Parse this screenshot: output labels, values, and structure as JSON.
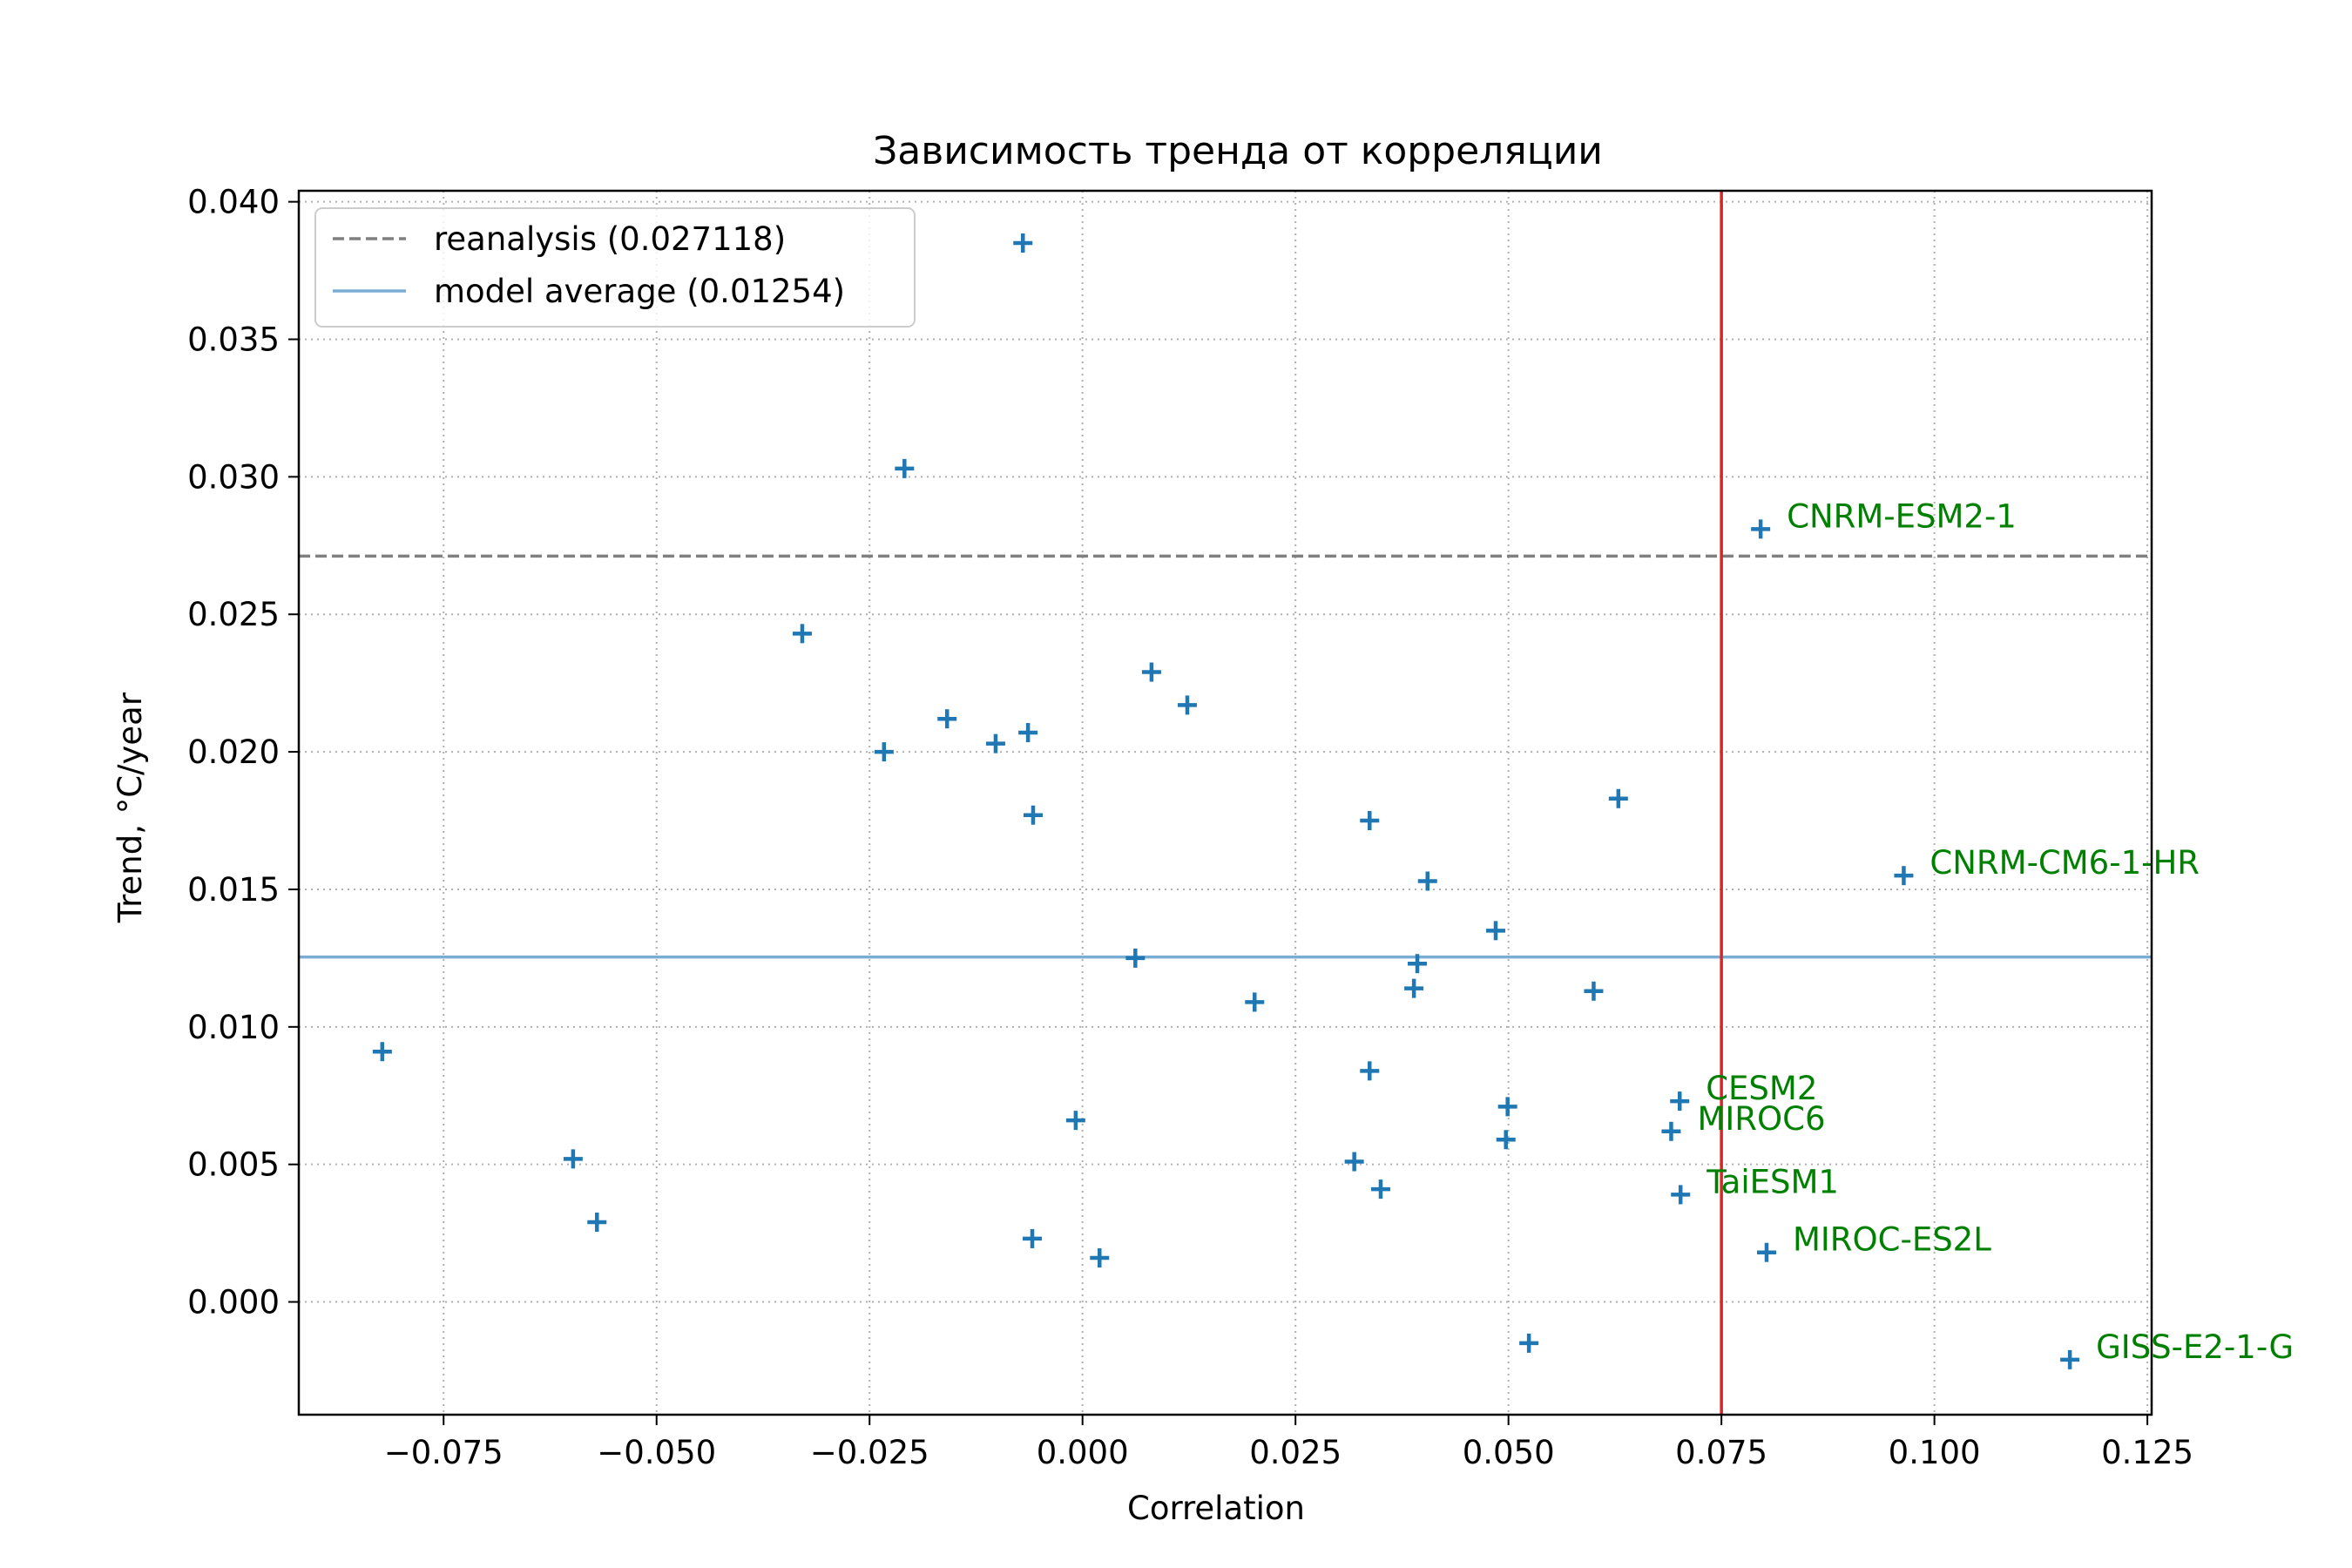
{
  "chart_data": {
    "type": "scatter",
    "title": "Зависимость тренда от корреляции",
    "xlabel": "Correlation",
    "ylabel": "Trend, °C/year",
    "xlim": [
      -0.092,
      0.1255
    ],
    "ylim": [
      -0.0041,
      0.0404
    ],
    "grid": true,
    "legend_placement": "upper left",
    "xticks": [
      -0.075,
      -0.05,
      -0.025,
      0.0,
      0.025,
      0.05,
      0.075,
      0.1,
      0.125
    ],
    "xtick_labels": [
      "−0.075",
      "−0.050",
      "−0.025",
      "0.000",
      "0.025",
      "0.050",
      "0.075",
      "0.100",
      "0.125"
    ],
    "yticks": [
      0.0,
      0.005,
      0.01,
      0.015,
      0.02,
      0.025,
      0.03,
      0.035,
      0.04
    ],
    "ytick_labels": [
      "0.000",
      "0.005",
      "0.010",
      "0.015",
      "0.020",
      "0.025",
      "0.030",
      "0.035",
      "0.040"
    ],
    "hlines": [
      {
        "label": "reanalysis (0.027118)",
        "y": 0.027118,
        "color": "#808080",
        "style": "dashed"
      },
      {
        "label": "model average (0.01254)",
        "y": 0.01254,
        "color": "#7aadd4",
        "style": "solid"
      }
    ],
    "vlines": [
      {
        "x": 0.075,
        "color": "#d62728"
      }
    ],
    "colors": {
      "points": "#1f77b4",
      "annotations": "#008000",
      "threshold": "#d62728"
    },
    "series": [
      {
        "marker": "plus",
        "points": [
          {
            "x": -0.0822,
            "y": 0.0091
          },
          {
            "x": -0.0598,
            "y": 0.0052
          },
          {
            "x": -0.057,
            "y": 0.0029
          },
          {
            "x": -0.0329,
            "y": 0.0243
          },
          {
            "x": -0.0233,
            "y": 0.02
          },
          {
            "x": -0.0209,
            "y": 0.0303
          },
          {
            "x": -0.0159,
            "y": 0.0212
          },
          {
            "x": -0.0102,
            "y": 0.0203
          },
          {
            "x": -0.007,
            "y": 0.0385
          },
          {
            "x": -0.0064,
            "y": 0.0207
          },
          {
            "x": -0.0058,
            "y": 0.0177
          },
          {
            "x": -0.0059,
            "y": 0.0023
          },
          {
            "x": -0.0008,
            "y": 0.0066
          },
          {
            "x": 0.002,
            "y": 0.0016
          },
          {
            "x": 0.0062,
            "y": 0.0125
          },
          {
            "x": 0.0081,
            "y": 0.0229
          },
          {
            "x": 0.0123,
            "y": 0.0217
          },
          {
            "x": 0.0202,
            "y": 0.0109
          },
          {
            "x": 0.0319,
            "y": 0.0051
          },
          {
            "x": 0.0337,
            "y": 0.0175
          },
          {
            "x": 0.0337,
            "y": 0.0084
          },
          {
            "x": 0.035,
            "y": 0.0041
          },
          {
            "x": 0.0389,
            "y": 0.0114
          },
          {
            "x": 0.0393,
            "y": 0.0123
          },
          {
            "x": 0.0405,
            "y": 0.0153
          },
          {
            "x": 0.0485,
            "y": 0.0135
          },
          {
            "x": 0.0497,
            "y": 0.0059
          },
          {
            "x": 0.0499,
            "y": 0.0071
          },
          {
            "x": 0.0524,
            "y": -0.0015
          },
          {
            "x": 0.06,
            "y": 0.0113
          },
          {
            "x": 0.0629,
            "y": 0.0183
          },
          {
            "x": 0.0691,
            "y": 0.0062,
            "label": "MIROC6"
          },
          {
            "x": 0.0701,
            "y": 0.0073,
            "label": "CESM2"
          },
          {
            "x": 0.0702,
            "y": 0.0039,
            "label": "TaiESM1"
          },
          {
            "x": 0.0796,
            "y": 0.0281,
            "label": "CNRM-ESM2-1"
          },
          {
            "x": 0.0803,
            "y": 0.0018,
            "label": "MIROC-ES2L"
          },
          {
            "x": 0.0964,
            "y": 0.0155,
            "label": "CNRM-CM6-1-HR"
          },
          {
            "x": 0.1159,
            "y": -0.0021,
            "label": "GISS-E2-1-G"
          }
        ]
      }
    ]
  }
}
